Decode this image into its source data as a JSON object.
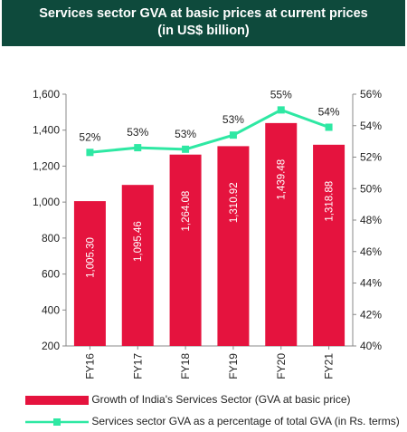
{
  "title": {
    "line1": "Services sector GVA at basic prices at current prices",
    "line2": "(in US$ billion)"
  },
  "colors": {
    "title_bg": "#0e4a3c",
    "bar": "#e5133e",
    "line": "#2ee8a3"
  },
  "chart_data": {
    "type": "bar",
    "categories": [
      "FY16",
      "FY17",
      "FY18",
      "FY19",
      "FY20",
      "FY21"
    ],
    "series": [
      {
        "name": "Growth of India's Services Sector (GVA at basic price)",
        "type": "bar",
        "axis": "left",
        "values": [
          1005.3,
          1095.46,
          1264.08,
          1310.92,
          1439.48,
          1318.88
        ],
        "labels": [
          "1,005.30",
          "1,095.46",
          "1,264.08",
          "1,310.92",
          "1,439.48",
          "1,318.88"
        ]
      },
      {
        "name": "Services sector GVA as a percentage of total GVA (in Rs. terms)",
        "type": "line",
        "axis": "right",
        "values": [
          52.3,
          52.6,
          52.5,
          53.4,
          55.0,
          53.9
        ],
        "labels": [
          "52%",
          "53%",
          "53%",
          "53%",
          "55%",
          "54%"
        ]
      }
    ],
    "y_left": {
      "min": 200,
      "max": 1600,
      "ticks": [
        "200",
        "400",
        "600",
        "800",
        "1,000",
        "1,200",
        "1,400",
        "1,600"
      ]
    },
    "y_right": {
      "min": 40,
      "max": 56,
      "ticks": [
        "40%",
        "42%",
        "44%",
        "46%",
        "48%",
        "50%",
        "52%",
        "54%",
        "56%"
      ]
    },
    "grid": false,
    "legend_position": "bottom"
  }
}
